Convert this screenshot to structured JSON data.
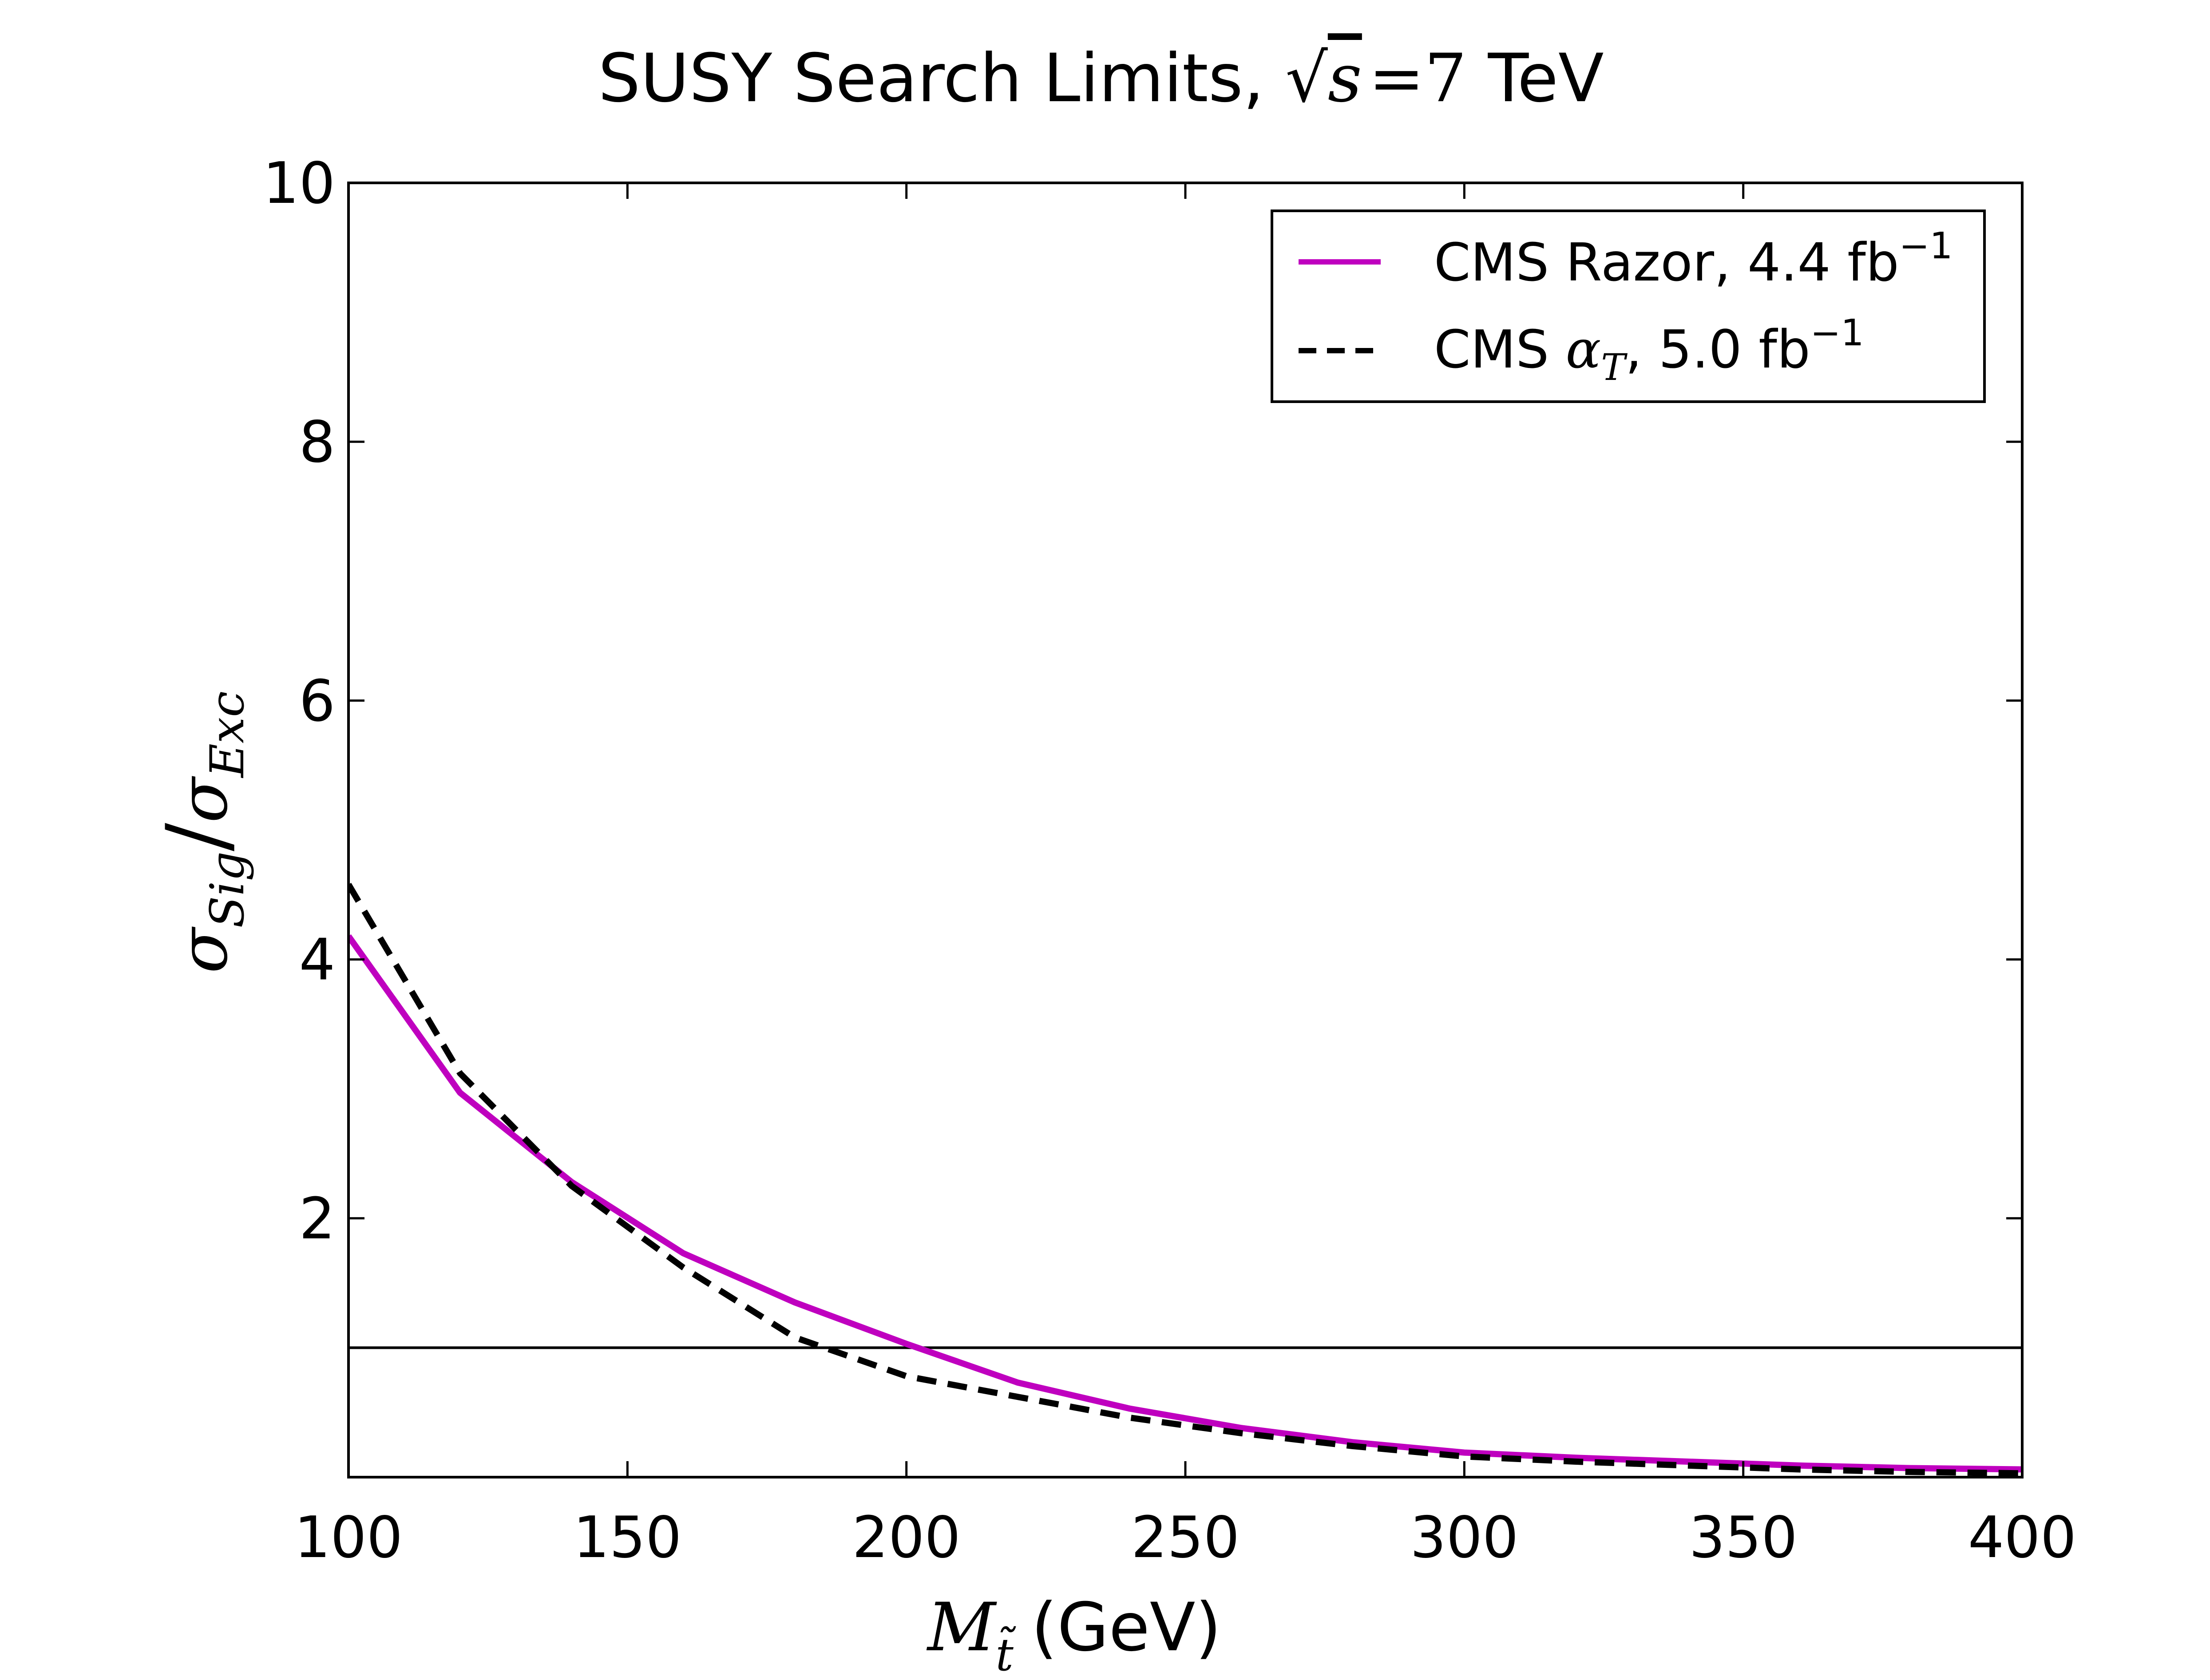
{
  "chart_data": {
    "type": "line",
    "title": {
      "prefix": "SUSY Search Limits, ",
      "sqrt_var": "s",
      "equals": "=",
      "value": "7",
      "unit": " TeV"
    },
    "xlabel": {
      "var": "M",
      "subscript": "t̃",
      "unit": "(GeV)"
    },
    "ylabel": {
      "num_var": "σ",
      "num_sub": "Sig",
      "slash": "/",
      "den_var": "σ",
      "den_sub": "Exc"
    },
    "xlim": [
      100,
      400
    ],
    "ylim": [
      0,
      10
    ],
    "x_ticks": [
      100,
      150,
      200,
      250,
      300,
      350,
      400
    ],
    "y_ticks": [
      2,
      4,
      6,
      8,
      10
    ],
    "grid": false,
    "legend_position": "top-right",
    "reference_line": {
      "y": 1,
      "color": "#000000"
    },
    "series": [
      {
        "name": "CMS Razor, 4.4 fb",
        "name_sup": "−1",
        "style": "solid",
        "color": "#bf00bf",
        "x": [
          100,
          120,
          140,
          160,
          180,
          200,
          220,
          240,
          260,
          280,
          300,
          320,
          340,
          360,
          380,
          400
        ],
        "y": [
          4.18,
          2.97,
          2.28,
          1.73,
          1.35,
          1.03,
          0.73,
          0.53,
          0.38,
          0.27,
          0.19,
          0.15,
          0.12,
          0.09,
          0.07,
          0.06
        ]
      },
      {
        "name_prefix": "CMS ",
        "name_var": "α",
        "name_sub": "T",
        "name": ", 5.0 fb",
        "name_sup": "−1",
        "style": "dashed",
        "color": "#000000",
        "x": [
          100,
          120,
          140,
          160,
          180,
          200,
          220,
          240,
          260,
          280,
          300,
          320,
          340,
          360,
          380,
          400
        ],
        "y": [
          4.58,
          3.12,
          2.25,
          1.62,
          1.08,
          0.78,
          0.62,
          0.46,
          0.34,
          0.24,
          0.16,
          0.12,
          0.09,
          0.06,
          0.04,
          0.03
        ]
      }
    ]
  }
}
